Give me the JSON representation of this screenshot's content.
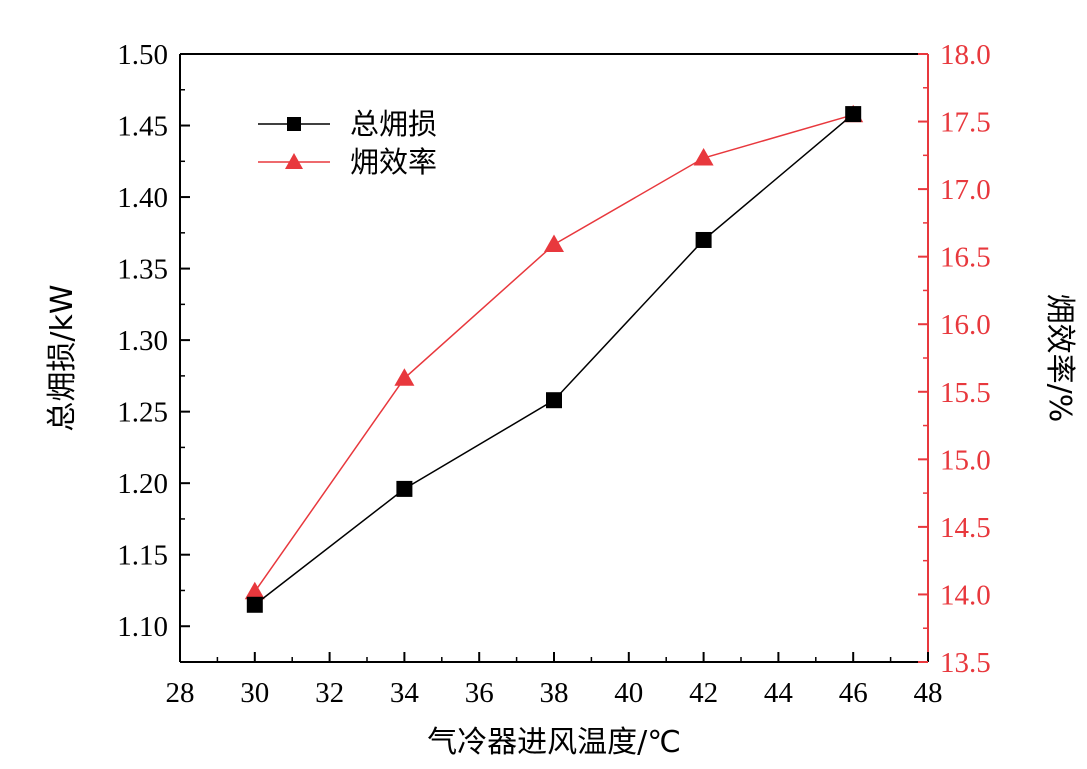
{
  "chart_data": {
    "type": "line",
    "x": [
      30,
      34,
      38,
      42,
      46
    ],
    "xlabel": "气冷器进风温度/℃",
    "xlim": [
      28,
      48
    ],
    "xticks": [
      "28",
      "30",
      "32",
      "34",
      "36",
      "38",
      "40",
      "42",
      "44",
      "46",
      "48"
    ],
    "ylabel_left": "总㶲损/kW",
    "ylim_left": [
      1.075,
      1.5
    ],
    "yticks_left": [
      "1.10",
      "1.15",
      "1.20",
      "1.25",
      "1.30",
      "1.35",
      "1.40",
      "1.45",
      "1.50"
    ],
    "ylabel_right": "㶲效率/%",
    "ylim_right": [
      13.5,
      18.0
    ],
    "yticks_right": [
      "13.5",
      "14.0",
      "14.5",
      "15.0",
      "15.5",
      "16.0",
      "16.5",
      "17.0",
      "17.5",
      "18.0"
    ],
    "grid": false,
    "legend_position": "top-left",
    "series": [
      {
        "name": "总㶲损",
        "axis": "left",
        "marker": "square",
        "color": "#000000",
        "values": [
          1.115,
          1.196,
          1.258,
          1.37,
          1.458
        ]
      },
      {
        "name": "㶲效率",
        "axis": "right",
        "marker": "triangle",
        "color": "#e8383d",
        "values": [
          14.02,
          15.6,
          16.59,
          17.23,
          17.55
        ]
      }
    ]
  }
}
